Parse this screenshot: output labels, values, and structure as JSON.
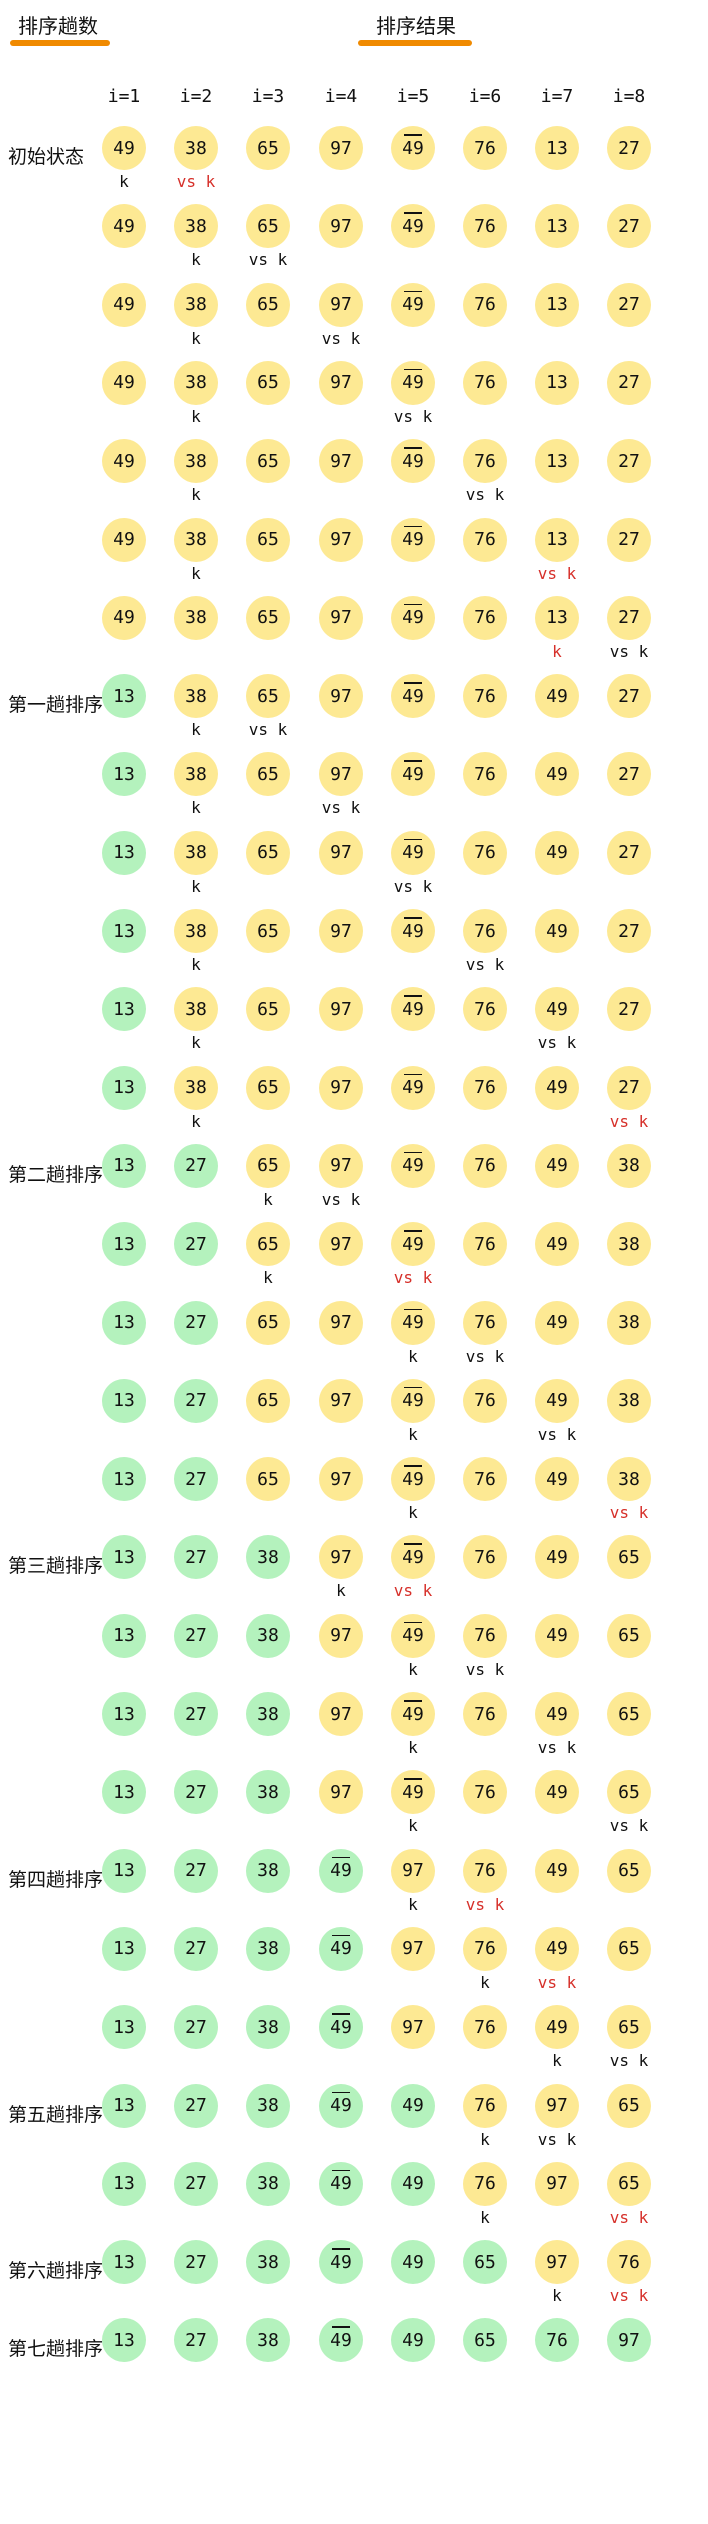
{
  "headers": {
    "passes": "排序趟数",
    "result": "排序结果"
  },
  "columns": [
    "i=1",
    "i=2",
    "i=3",
    "i=4",
    "i=5",
    "i=6",
    "i=7",
    "i=8"
  ],
  "colors": {
    "unsorted": "#fde993",
    "sorted": "#b4f2bd",
    "underline": "#f08a00",
    "highlight": "#d6302a"
  },
  "rows": [
    {
      "label": "初始状态",
      "values": [
        "49",
        "38",
        "65",
        "97",
        "49",
        "76",
        "13",
        "27"
      ],
      "green": 0,
      "bar": 4,
      "marks": [
        {
          "col": 0,
          "text": "k",
          "red": false
        },
        {
          "col": 1,
          "text": "vs k",
          "red": true
        }
      ]
    },
    {
      "label": "",
      "values": [
        "49",
        "38",
        "65",
        "97",
        "49",
        "76",
        "13",
        "27"
      ],
      "green": 0,
      "bar": 4,
      "marks": [
        {
          "col": 1,
          "text": "k",
          "red": false
        },
        {
          "col": 2,
          "text": "vs k",
          "red": false
        }
      ]
    },
    {
      "label": "",
      "values": [
        "49",
        "38",
        "65",
        "97",
        "49",
        "76",
        "13",
        "27"
      ],
      "green": 0,
      "bar": 4,
      "marks": [
        {
          "col": 1,
          "text": "k",
          "red": false
        },
        {
          "col": 3,
          "text": "vs k",
          "red": false
        }
      ]
    },
    {
      "label": "",
      "values": [
        "49",
        "38",
        "65",
        "97",
        "49",
        "76",
        "13",
        "27"
      ],
      "green": 0,
      "bar": 4,
      "marks": [
        {
          "col": 1,
          "text": "k",
          "red": false
        },
        {
          "col": 4,
          "text": "vs k",
          "red": false
        }
      ]
    },
    {
      "label": "",
      "values": [
        "49",
        "38",
        "65",
        "97",
        "49",
        "76",
        "13",
        "27"
      ],
      "green": 0,
      "bar": 4,
      "marks": [
        {
          "col": 1,
          "text": "k",
          "red": false
        },
        {
          "col": 5,
          "text": "vs k",
          "red": false
        }
      ]
    },
    {
      "label": "",
      "values": [
        "49",
        "38",
        "65",
        "97",
        "49",
        "76",
        "13",
        "27"
      ],
      "green": 0,
      "bar": 4,
      "marks": [
        {
          "col": 1,
          "text": "k",
          "red": false
        },
        {
          "col": 6,
          "text": "vs k",
          "red": true
        }
      ]
    },
    {
      "label": "",
      "values": [
        "49",
        "38",
        "65",
        "97",
        "49",
        "76",
        "13",
        "27"
      ],
      "green": 0,
      "bar": 4,
      "marks": [
        {
          "col": 6,
          "text": "k",
          "red": true
        },
        {
          "col": 7,
          "text": "vs k",
          "red": false
        }
      ]
    },
    {
      "label": "第一趟排序",
      "values": [
        "13",
        "38",
        "65",
        "97",
        "49",
        "76",
        "49",
        "27"
      ],
      "green": 1,
      "bar": 4,
      "marks": [
        {
          "col": 1,
          "text": "k",
          "red": false
        },
        {
          "col": 2,
          "text": "vs k",
          "red": false
        }
      ]
    },
    {
      "label": "",
      "values": [
        "13",
        "38",
        "65",
        "97",
        "49",
        "76",
        "49",
        "27"
      ],
      "green": 1,
      "bar": 4,
      "marks": [
        {
          "col": 1,
          "text": "k",
          "red": false
        },
        {
          "col": 3,
          "text": "vs k",
          "red": false
        }
      ]
    },
    {
      "label": "",
      "values": [
        "13",
        "38",
        "65",
        "97",
        "49",
        "76",
        "49",
        "27"
      ],
      "green": 1,
      "bar": 4,
      "marks": [
        {
          "col": 1,
          "text": "k",
          "red": false
        },
        {
          "col": 4,
          "text": "vs k",
          "red": false
        }
      ]
    },
    {
      "label": "",
      "values": [
        "13",
        "38",
        "65",
        "97",
        "49",
        "76",
        "49",
        "27"
      ],
      "green": 1,
      "bar": 4,
      "marks": [
        {
          "col": 1,
          "text": "k",
          "red": false
        },
        {
          "col": 5,
          "text": "vs k",
          "red": false
        }
      ]
    },
    {
      "label": "",
      "values": [
        "13",
        "38",
        "65",
        "97",
        "49",
        "76",
        "49",
        "27"
      ],
      "green": 1,
      "bar": 4,
      "marks": [
        {
          "col": 1,
          "text": "k",
          "red": false
        },
        {
          "col": 6,
          "text": "vs k",
          "red": false
        }
      ]
    },
    {
      "label": "",
      "values": [
        "13",
        "38",
        "65",
        "97",
        "49",
        "76",
        "49",
        "27"
      ],
      "green": 1,
      "bar": 4,
      "marks": [
        {
          "col": 1,
          "text": "k",
          "red": false
        },
        {
          "col": 7,
          "text": "vs k",
          "red": true
        }
      ]
    },
    {
      "label": "第二趟排序",
      "values": [
        "13",
        "27",
        "65",
        "97",
        "49",
        "76",
        "49",
        "38"
      ],
      "green": 2,
      "bar": 4,
      "marks": [
        {
          "col": 2,
          "text": "k",
          "red": false
        },
        {
          "col": 3,
          "text": "vs k",
          "red": false
        }
      ]
    },
    {
      "label": "",
      "values": [
        "13",
        "27",
        "65",
        "97",
        "49",
        "76",
        "49",
        "38"
      ],
      "green": 2,
      "bar": 4,
      "marks": [
        {
          "col": 2,
          "text": "k",
          "red": false
        },
        {
          "col": 4,
          "text": "vs k",
          "red": true
        }
      ]
    },
    {
      "label": "",
      "values": [
        "13",
        "27",
        "65",
        "97",
        "49",
        "76",
        "49",
        "38"
      ],
      "green": 2,
      "bar": 4,
      "marks": [
        {
          "col": 4,
          "text": "k",
          "red": false
        },
        {
          "col": 5,
          "text": "vs k",
          "red": false
        }
      ]
    },
    {
      "label": "",
      "values": [
        "13",
        "27",
        "65",
        "97",
        "49",
        "76",
        "49",
        "38"
      ],
      "green": 2,
      "bar": 4,
      "marks": [
        {
          "col": 4,
          "text": "k",
          "red": false
        },
        {
          "col": 6,
          "text": "vs k",
          "red": false
        }
      ]
    },
    {
      "label": "",
      "values": [
        "13",
        "27",
        "65",
        "97",
        "49",
        "76",
        "49",
        "38"
      ],
      "green": 2,
      "bar": 4,
      "marks": [
        {
          "col": 4,
          "text": "k",
          "red": false
        },
        {
          "col": 7,
          "text": "vs k",
          "red": true
        }
      ]
    },
    {
      "label": "第三趟排序",
      "values": [
        "13",
        "27",
        "38",
        "97",
        "49",
        "76",
        "49",
        "65"
      ],
      "green": 3,
      "bar": 4,
      "marks": [
        {
          "col": 3,
          "text": "k",
          "red": false
        },
        {
          "col": 4,
          "text": "vs k",
          "red": true
        }
      ]
    },
    {
      "label": "",
      "values": [
        "13",
        "27",
        "38",
        "97",
        "49",
        "76",
        "49",
        "65"
      ],
      "green": 3,
      "bar": 4,
      "marks": [
        {
          "col": 4,
          "text": "k",
          "red": false
        },
        {
          "col": 5,
          "text": "vs k",
          "red": false
        }
      ]
    },
    {
      "label": "",
      "values": [
        "13",
        "27",
        "38",
        "97",
        "49",
        "76",
        "49",
        "65"
      ],
      "green": 3,
      "bar": 4,
      "marks": [
        {
          "col": 4,
          "text": "k",
          "red": false
        },
        {
          "col": 6,
          "text": "vs k",
          "red": false
        }
      ]
    },
    {
      "label": "",
      "values": [
        "13",
        "27",
        "38",
        "97",
        "49",
        "76",
        "49",
        "65"
      ],
      "green": 3,
      "bar": 4,
      "marks": [
        {
          "col": 4,
          "text": "k",
          "red": false
        },
        {
          "col": 7,
          "text": "vs k",
          "red": false
        }
      ]
    },
    {
      "label": "第四趟排序",
      "values": [
        "13",
        "27",
        "38",
        "49",
        "97",
        "76",
        "49",
        "65"
      ],
      "green": 4,
      "bar": 3,
      "marks": [
        {
          "col": 4,
          "text": "k",
          "red": false
        },
        {
          "col": 5,
          "text": "vs k",
          "red": true
        }
      ]
    },
    {
      "label": "",
      "values": [
        "13",
        "27",
        "38",
        "49",
        "97",
        "76",
        "49",
        "65"
      ],
      "green": 4,
      "bar": 3,
      "marks": [
        {
          "col": 5,
          "text": "k",
          "red": false
        },
        {
          "col": 6,
          "text": "vs k",
          "red": true
        }
      ]
    },
    {
      "label": "",
      "values": [
        "13",
        "27",
        "38",
        "49",
        "97",
        "76",
        "49",
        "65"
      ],
      "green": 4,
      "bar": 3,
      "marks": [
        {
          "col": 6,
          "text": "k",
          "red": false
        },
        {
          "col": 7,
          "text": "vs k",
          "red": false
        }
      ]
    },
    {
      "label": "第五趟排序",
      "values": [
        "13",
        "27",
        "38",
        "49",
        "49",
        "76",
        "97",
        "65"
      ],
      "green": 5,
      "bar": 3,
      "marks": [
        {
          "col": 5,
          "text": "k",
          "red": false
        },
        {
          "col": 6,
          "text": "vs k",
          "red": false
        }
      ]
    },
    {
      "label": "",
      "values": [
        "13",
        "27",
        "38",
        "49",
        "49",
        "76",
        "97",
        "65"
      ],
      "green": 5,
      "bar": 3,
      "marks": [
        {
          "col": 5,
          "text": "k",
          "red": false
        },
        {
          "col": 7,
          "text": "vs k",
          "red": true
        }
      ]
    },
    {
      "label": "第六趟排序",
      "values": [
        "13",
        "27",
        "38",
        "49",
        "49",
        "65",
        "97",
        "76"
      ],
      "green": 6,
      "bar": 3,
      "marks": [
        {
          "col": 6,
          "text": "k",
          "red": false
        },
        {
          "col": 7,
          "text": "vs k",
          "red": true
        }
      ]
    },
    {
      "label": "第七趟排序",
      "values": [
        "13",
        "27",
        "38",
        "49",
        "49",
        "65",
        "76",
        "97"
      ],
      "green": 8,
      "bar": 3,
      "marks": []
    }
  ]
}
